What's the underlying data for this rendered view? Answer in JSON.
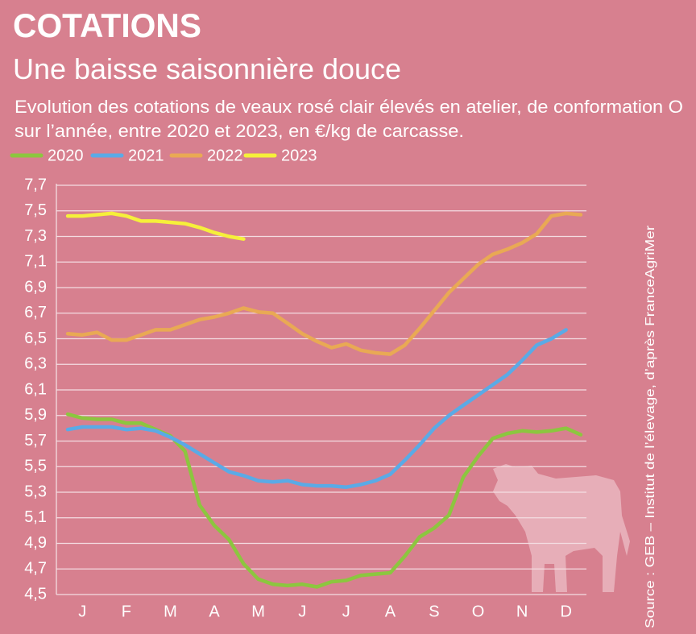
{
  "chart_data": {
    "type": "line",
    "title": "COTATIONS",
    "subtitle": "Une baisse saisonnière douce",
    "description": [
      "Evolution des cotations de veaux rosé clair élevés en atelier, de conformation O",
      "sur l’année, entre 2020 et 2023, en €/kg de carcasse."
    ],
    "source": "Source : GEB – Institut de l’élevage, d’après FranceAgriMer",
    "categories": [
      null,
      "J",
      null,
      null,
      "F",
      null,
      null,
      "M",
      null,
      null,
      "A",
      null,
      null,
      "M",
      null,
      null,
      "J",
      null,
      null,
      "J",
      null,
      null,
      "A",
      null,
      null,
      "S",
      null,
      null,
      "O",
      null,
      null,
      "N",
      null,
      null,
      "D",
      null
    ],
    "ylim": [
      4.5,
      7.7
    ],
    "yticks": [
      {
        "value": 4.5,
        "label": "4,5"
      },
      {
        "value": 4.7,
        "label": "4,7"
      },
      {
        "value": 4.9,
        "label": "4,9"
      },
      {
        "value": 5.1,
        "label": "5,1"
      },
      {
        "value": 5.3,
        "label": "5,3"
      },
      {
        "value": 5.5,
        "label": "5,5"
      },
      {
        "value": 5.7,
        "label": "5,7"
      },
      {
        "value": 5.9,
        "label": "5,9"
      },
      {
        "value": 6.1,
        "label": "6,1"
      },
      {
        "value": 6.3,
        "label": "6,3"
      },
      {
        "value": 6.5,
        "label": "6,5"
      },
      {
        "value": 6.7,
        "label": "6,7"
      },
      {
        "value": 6.9,
        "label": "6,9"
      },
      {
        "value": 7.1,
        "label": "7,1"
      },
      {
        "value": 7.3,
        "label": "7,3"
      },
      {
        "value": 7.5,
        "label": "7,5"
      },
      {
        "value": 7.7,
        "label": "7,7"
      }
    ],
    "grid": true,
    "legend": "top-left",
    "series": [
      {
        "name": "2020",
        "color": "#8cc63f",
        "values": [
          5.91,
          5.88,
          5.87,
          5.87,
          5.84,
          5.84,
          5.79,
          5.74,
          5.62,
          5.2,
          5.04,
          4.93,
          4.74,
          4.62,
          4.58,
          4.57,
          4.58,
          4.56,
          4.6,
          4.61,
          4.65,
          4.66,
          4.67,
          4.8,
          4.95,
          5.02,
          5.12,
          5.42,
          5.58,
          5.72,
          5.76,
          5.78,
          5.77,
          5.78,
          5.8,
          5.75
        ]
      },
      {
        "name": "2021",
        "color": "#5aaae6",
        "values": [
          5.79,
          5.81,
          5.81,
          5.81,
          5.79,
          5.8,
          5.78,
          5.73,
          5.67,
          5.6,
          5.53,
          5.46,
          5.43,
          5.39,
          5.38,
          5.39,
          5.36,
          5.35,
          5.35,
          5.34,
          5.36,
          5.39,
          5.44,
          5.55,
          5.67,
          5.8,
          5.9,
          5.98,
          6.06,
          6.14,
          6.22,
          6.33,
          6.45,
          6.5,
          6.57,
          null
        ]
      },
      {
        "name": "2022",
        "color": "#e9a954",
        "values": [
          6.54,
          6.53,
          6.55,
          6.49,
          6.49,
          6.53,
          6.57,
          6.57,
          6.61,
          6.65,
          6.67,
          6.7,
          6.74,
          6.71,
          6.7,
          6.62,
          6.54,
          6.48,
          6.43,
          6.46,
          6.41,
          6.39,
          6.38,
          6.45,
          6.58,
          6.72,
          6.86,
          6.97,
          7.08,
          7.16,
          7.2,
          7.25,
          7.32,
          7.46,
          7.48,
          7.47
        ]
      },
      {
        "name": "2023",
        "color": "#f6f03a",
        "values": [
          7.46,
          7.46,
          7.47,
          7.48,
          7.46,
          7.42,
          7.42,
          7.41,
          7.4,
          7.37,
          7.33,
          7.3,
          7.28,
          null,
          null,
          null,
          null,
          null,
          null,
          null,
          null,
          null,
          null,
          null,
          null,
          null,
          null,
          null,
          null,
          null,
          null,
          null,
          null,
          null,
          null,
          null
        ]
      }
    ]
  }
}
